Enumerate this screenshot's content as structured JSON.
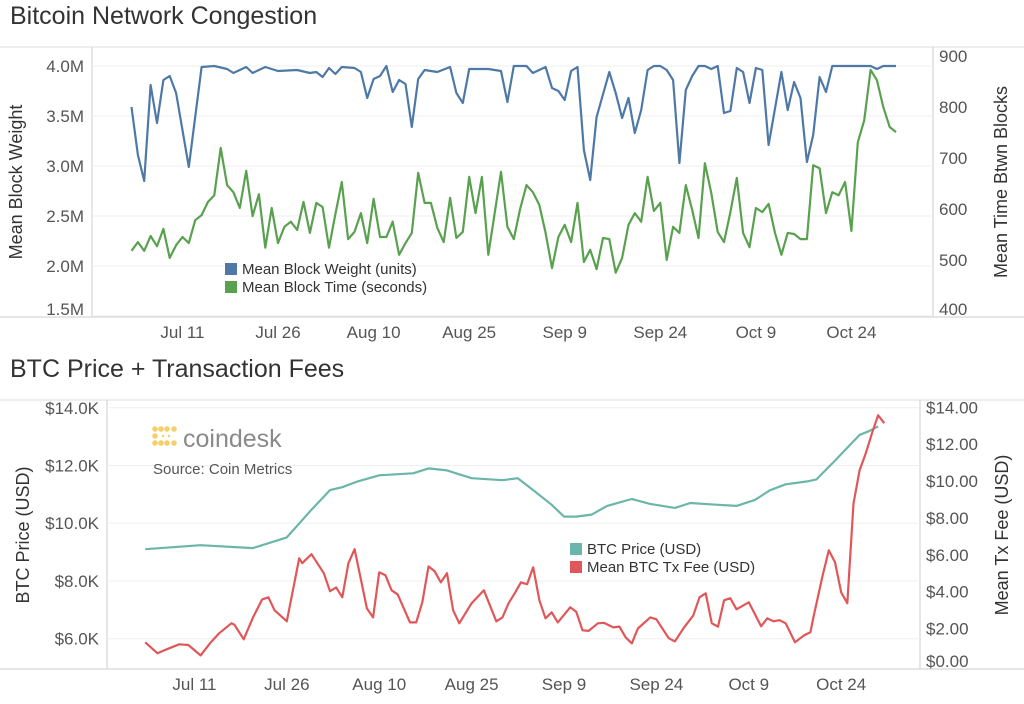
{
  "charts_header": {
    "top_title": "Bitcoin Network Congestion",
    "bottom_title": "BTC Price + Transaction Fees"
  },
  "branding": {
    "logo_text": "coindesk",
    "source": "Source: Coin Metrics"
  },
  "colors": {
    "weight": "#4e79a7",
    "time": "#59a14f",
    "price": "#6bb5a9",
    "fee": "#e15759",
    "logo": "#f5cf6a"
  },
  "chart_data": [
    {
      "type": "line",
      "title": "Bitcoin Network Congestion",
      "x_unit": "days since Jul 3",
      "xlim": [
        -6.2,
        125.8
      ],
      "xticks": [
        8,
        23,
        38,
        53,
        68,
        83,
        98,
        113
      ],
      "xtick_labels": [
        "Jul 11",
        "Jul 26",
        "Aug 10",
        "Aug 25",
        "Sep 9",
        "Sep 24",
        "Oct 9",
        "Oct 24"
      ],
      "ylabel": "Mean Block Weight",
      "ylim": [
        1.49,
        4.19
      ],
      "yticks": [
        1.5,
        2.0,
        2.5,
        3.0,
        3.5,
        4.0
      ],
      "ytick_labels": [
        "1.5M",
        "2.0M",
        "2.5M",
        "3.0M",
        "3.5M",
        "4.0M"
      ],
      "y2label": "Mean Time Btwn Blocks",
      "y2lim": [
        388,
        918
      ],
      "y2ticks": [
        400,
        500,
        600,
        700,
        800,
        900
      ],
      "y2tick_labels": [
        "400",
        "500",
        "600",
        "700",
        "800",
        "900"
      ],
      "grid": true,
      "legend_position": "bottom-center",
      "series": [
        {
          "name": "Mean Block Weight (units)",
          "axis": "left",
          "color_key": "weight",
          "x": [
            0,
            1,
            2,
            3,
            4,
            5,
            6,
            7,
            9,
            11,
            13,
            15,
            16,
            18,
            19,
            21,
            23,
            26,
            28,
            29,
            30,
            31,
            32,
            33,
            35,
            36,
            37,
            38,
            39,
            40,
            41,
            42,
            43,
            44,
            45,
            46,
            48,
            50,
            51,
            52,
            53,
            56,
            58,
            59,
            60,
            62,
            63,
            65,
            66,
            67,
            68,
            69,
            70,
            71,
            72,
            73,
            75,
            76,
            77,
            78,
            79,
            80,
            81,
            82,
            83,
            84,
            85,
            86,
            87,
            88,
            89,
            90,
            91,
            92,
            93,
            94,
            95,
            96,
            97,
            98,
            99,
            100,
            102,
            103,
            104,
            105,
            106,
            107,
            108,
            109,
            110,
            116,
            117,
            118,
            120
          ],
          "y": [
            3.59,
            3.11,
            2.85,
            3.81,
            3.43,
            3.86,
            3.9,
            3.73,
            2.99,
            3.99,
            4.0,
            3.97,
            3.93,
            3.99,
            3.93,
            3.99,
            3.95,
            3.96,
            3.93,
            3.94,
            3.89,
            3.98,
            3.92,
            3.99,
            3.98,
            3.94,
            3.68,
            3.87,
            3.9,
            4.0,
            3.74,
            3.86,
            3.82,
            3.39,
            3.87,
            3.96,
            3.94,
            3.99,
            3.73,
            3.63,
            3.97,
            3.97,
            3.95,
            3.64,
            4.0,
            4.0,
            3.93,
            3.99,
            3.78,
            3.75,
            3.66,
            3.95,
            3.99,
            3.16,
            2.86,
            3.49,
            3.94,
            3.73,
            3.48,
            3.68,
            3.33,
            3.56,
            3.96,
            4.0,
            4.0,
            3.96,
            3.86,
            3.03,
            3.76,
            3.9,
            4.0,
            4.0,
            3.97,
            4.0,
            3.53,
            3.55,
            3.98,
            3.94,
            3.63,
            3.98,
            3.96,
            3.21,
            3.94,
            3.56,
            3.84,
            3.68,
            3.04,
            3.31,
            3.89,
            3.74,
            4.0,
            4.0,
            3.97,
            4.0,
            4.0
          ]
        },
        {
          "name": "Mean Block Time (seconds)",
          "axis": "right",
          "color_key": "time",
          "x": [
            0,
            1,
            2,
            3,
            4,
            5,
            6,
            7,
            8,
            9,
            10,
            11,
            12,
            13,
            14,
            15,
            16,
            17,
            18,
            19,
            20,
            21,
            22,
            23,
            24,
            25,
            26,
            27,
            28,
            29,
            30,
            31,
            32,
            33,
            34,
            35,
            36,
            37,
            38,
            39,
            40,
            41,
            42,
            43,
            44,
            45,
            46,
            47,
            48,
            49,
            50,
            51,
            52,
            53,
            54,
            55,
            56,
            57,
            58,
            59,
            60,
            61,
            62,
            63,
            64,
            65,
            66,
            67,
            68,
            69,
            70,
            71,
            72,
            73,
            74,
            75,
            76,
            77,
            78,
            79,
            80,
            81,
            82,
            83,
            84,
            85,
            86,
            87,
            88,
            89,
            90,
            91,
            92,
            93,
            94,
            95,
            96,
            97,
            98,
            99,
            100,
            101,
            102,
            103,
            104,
            105,
            106,
            107,
            108,
            109,
            110,
            111,
            112,
            113,
            114,
            115,
            116,
            117,
            118,
            119,
            120
          ],
          "y": [
            518,
            535,
            518,
            547,
            527,
            561,
            504,
            529,
            545,
            533,
            578,
            588,
            614,
            627,
            720,
            647,
            633,
            602,
            675,
            586,
            629,
            524,
            602,
            533,
            565,
            575,
            559,
            614,
            553,
            612,
            604,
            524,
            590,
            653,
            541,
            555,
            592,
            533,
            620,
            545,
            545,
            575,
            510,
            533,
            553,
            671,
            612,
            612,
            563,
            535,
            622,
            543,
            555,
            663,
            592,
            663,
            510,
            592,
            673,
            565,
            541,
            600,
            647,
            633,
            608,
            553,
            484,
            545,
            569,
            535,
            612,
            496,
            520,
            482,
            543,
            541,
            475,
            504,
            569,
            592,
            575,
            663,
            596,
            612,
            500,
            565,
            553,
            647,
            598,
            543,
            690,
            631,
            555,
            535,
            594,
            661,
            553,
            525,
            602,
            594,
            610,
            553,
            510,
            553,
            551,
            541,
            541,
            686,
            680,
            592,
            633,
            627,
            653,
            557,
            731,
            774,
            873,
            853,
            800,
            761,
            751
          ]
        }
      ]
    },
    {
      "type": "line",
      "title": "BTC Price + Transaction Fees",
      "x_unit": "days since Jul 3",
      "xlim": [
        -6.2,
        125.8
      ],
      "xticks": [
        8,
        23,
        38,
        53,
        68,
        83,
        98,
        113
      ],
      "xtick_labels": [
        "Jul 11",
        "Jul 26",
        "Aug 10",
        "Aug 25",
        "Sep 9",
        "Sep 24",
        "Oct 9",
        "Oct 24"
      ],
      "ylabel": "BTC Price (USD)",
      "ylim": [
        4.95,
        14.27
      ],
      "yticks": [
        6,
        8,
        10,
        12,
        14
      ],
      "ytick_labels": [
        "$6.0K",
        "$8.0K",
        "$10.0K",
        "$12.0K",
        "$14.0K"
      ],
      "y2label": "Mean Tx Fee (USD)",
      "y2lim": [
        -0.2,
        14.4
      ],
      "y2ticks": [
        0,
        2,
        4,
        6,
        8,
        10,
        12,
        14
      ],
      "y2tick_labels": [
        "$0.00",
        "$2.00",
        "$4.00",
        "$6.00",
        "$8.00",
        "$10.00",
        "$12.00",
        "$14.00"
      ],
      "grid": true,
      "legend_position": "center",
      "series": [
        {
          "name": "BTC Price (USD)",
          "axis": "left",
          "color_key": "price",
          "x": [
            0,
            9,
            17.5,
            23,
            27,
            30,
            32,
            34.5,
            38,
            43.5,
            46,
            49,
            53,
            58,
            60.5,
            63,
            66,
            68,
            70,
            72.5,
            75,
            79,
            82,
            86,
            88.5,
            93,
            96,
            99,
            101.5,
            104,
            107.5,
            109,
            112,
            116,
            117.5,
            119
          ],
          "y": [
            9.1,
            9.24,
            9.14,
            9.51,
            10.47,
            11.15,
            11.25,
            11.45,
            11.66,
            11.73,
            11.9,
            11.83,
            11.56,
            11.49,
            11.56,
            11.15,
            10.64,
            10.23,
            10.23,
            10.3,
            10.6,
            10.84,
            10.67,
            10.53,
            10.7,
            10.64,
            10.6,
            10.81,
            11.15,
            11.35,
            11.45,
            11.52,
            12.17,
            13.06,
            13.19,
            13.36
          ]
        },
        {
          "name": "Mean BTC Tx Fee (USD)",
          "axis": "right",
          "color_key": "fee",
          "x": [
            0,
            2,
            3.5,
            5.5,
            7,
            9,
            10.5,
            12,
            14,
            14.5,
            16,
            17.5,
            19,
            20,
            21,
            23,
            25,
            25.5,
            27,
            29,
            30,
            31,
            32,
            33,
            34,
            36,
            37,
            38,
            39,
            40,
            41,
            43,
            44,
            45,
            46,
            47,
            48,
            49,
            50,
            51,
            53,
            55,
            57,
            58,
            59,
            60,
            61,
            62,
            63,
            64,
            65,
            66,
            67,
            69,
            70,
            71,
            72,
            73.5,
            74.5,
            76,
            77,
            78,
            79,
            80,
            82,
            83,
            85,
            86,
            87.5,
            89,
            90,
            91,
            92,
            93,
            94,
            95,
            96,
            98,
            100,
            101,
            102,
            103,
            104,
            105.5,
            107,
            108,
            108.5,
            110,
            111,
            112,
            113,
            114,
            115,
            116,
            117,
            118,
            119,
            120
          ],
          "y": [
            1.25,
            0.65,
            0.87,
            1.14,
            1.1,
            0.54,
            1.19,
            1.74,
            2.28,
            2.2,
            1.41,
            2.6,
            3.58,
            3.69,
            2.99,
            2.39,
            5.81,
            5.54,
            6.03,
            5.0,
            4.02,
            4.23,
            3.69,
            5.54,
            6.3,
            3.09,
            2.6,
            5.05,
            4.89,
            4.07,
            3.85,
            2.33,
            2.33,
            3.42,
            5.37,
            5.1,
            4.5,
            5.0,
            2.99,
            2.28,
            3.37,
            4.07,
            2.39,
            2.6,
            3.37,
            3.91,
            4.5,
            4.4,
            5.32,
            3.53,
            2.55,
            2.88,
            2.33,
            3.15,
            2.9,
            1.9,
            1.87,
            2.28,
            2.3,
            2.06,
            2.1,
            1.52,
            1.19,
            2.0,
            2.6,
            2.5,
            1.47,
            1.3,
            2.06,
            2.71,
            3.69,
            3.91,
            2.28,
            2.1,
            3.53,
            3.64,
            3.04,
            3.42,
            2.12,
            2.55,
            2.39,
            2.45,
            2.28,
            1.25,
            1.63,
            1.79,
            2.6,
            4.89,
            6.24,
            5.59,
            3.96,
            3.37,
            8.79,
            10.59,
            11.51,
            12.6,
            13.57,
            13.14
          ]
        }
      ]
    }
  ]
}
